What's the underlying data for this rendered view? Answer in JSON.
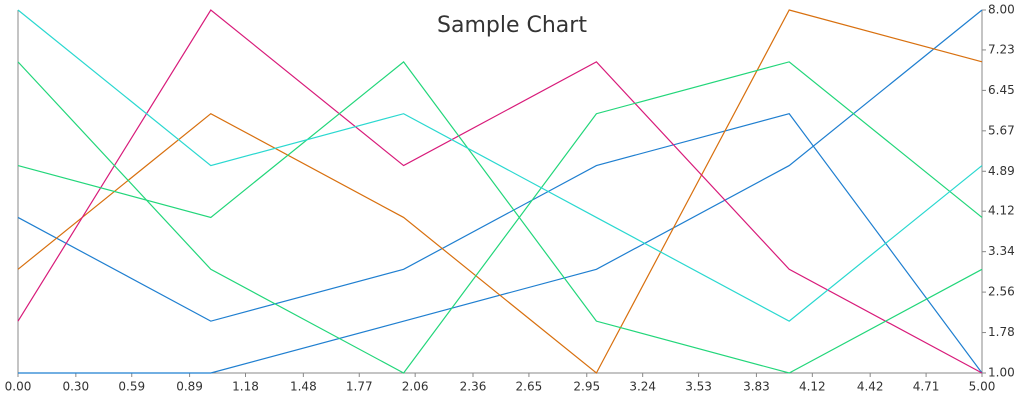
{
  "chart_data": {
    "type": "line",
    "title": "Sample Chart",
    "x": [
      0,
      1,
      2,
      3,
      4,
      5
    ],
    "xlim": [
      0,
      5
    ],
    "xticks": [
      {
        "value": 0,
        "label": "0.00"
      },
      {
        "value": 0.3,
        "label": "0.30"
      },
      {
        "value": 0.59,
        "label": "0.59"
      },
      {
        "value": 0.89,
        "label": "0.89"
      },
      {
        "value": 1.18,
        "label": "1.18"
      },
      {
        "value": 1.48,
        "label": "1.48"
      },
      {
        "value": 1.77,
        "label": "1.77"
      },
      {
        "value": 2.06,
        "label": "2.06"
      },
      {
        "value": 2.36,
        "label": "2.36"
      },
      {
        "value": 2.65,
        "label": "2.65"
      },
      {
        "value": 2.95,
        "label": "2.95"
      },
      {
        "value": 3.24,
        "label": "3.24"
      },
      {
        "value": 3.53,
        "label": "3.53"
      },
      {
        "value": 3.83,
        "label": "3.83"
      },
      {
        "value": 4.12,
        "label": "4.12"
      },
      {
        "value": 4.42,
        "label": "4.42"
      },
      {
        "value": 4.71,
        "label": "4.71"
      },
      {
        "value": 5,
        "label": "5.00"
      }
    ],
    "ylim": [
      1,
      8
    ],
    "yticks": [
      {
        "value": 1,
        "label": "1.00"
      },
      {
        "value": 1.78,
        "label": "1.78"
      },
      {
        "value": 2.56,
        "label": "2.56"
      },
      {
        "value": 3.34,
        "label": "3.34"
      },
      {
        "value": 4.12,
        "label": "4.12"
      },
      {
        "value": 4.89,
        "label": "4.89"
      },
      {
        "value": 5.67,
        "label": "5.67"
      },
      {
        "value": 6.45,
        "label": "6.45"
      },
      {
        "value": 7.23,
        "label": "7.23"
      },
      {
        "value": 8,
        "label": "8.00"
      }
    ],
    "series": [
      {
        "color": "#1f7fd0",
        "values": [
          4,
          2,
          3,
          5,
          6,
          1
        ]
      },
      {
        "color": "#1f7fd0",
        "values": [
          1,
          1,
          2,
          3,
          5,
          8
        ]
      },
      {
        "color": "#d8700f",
        "values": [
          3,
          6,
          4,
          1,
          8,
          7
        ]
      },
      {
        "color": "#d81b7a",
        "values": [
          2,
          8,
          5,
          7,
          3,
          1
        ]
      },
      {
        "color": "#22d67a",
        "values": [
          7,
          3,
          1,
          6,
          7,
          4
        ]
      },
      {
        "color": "#22d67a",
        "values": [
          5,
          4,
          7,
          2,
          1,
          3
        ]
      },
      {
        "color": "#2ad8d0",
        "values": [
          8,
          5,
          6,
          4,
          2,
          5
        ]
      }
    ]
  }
}
